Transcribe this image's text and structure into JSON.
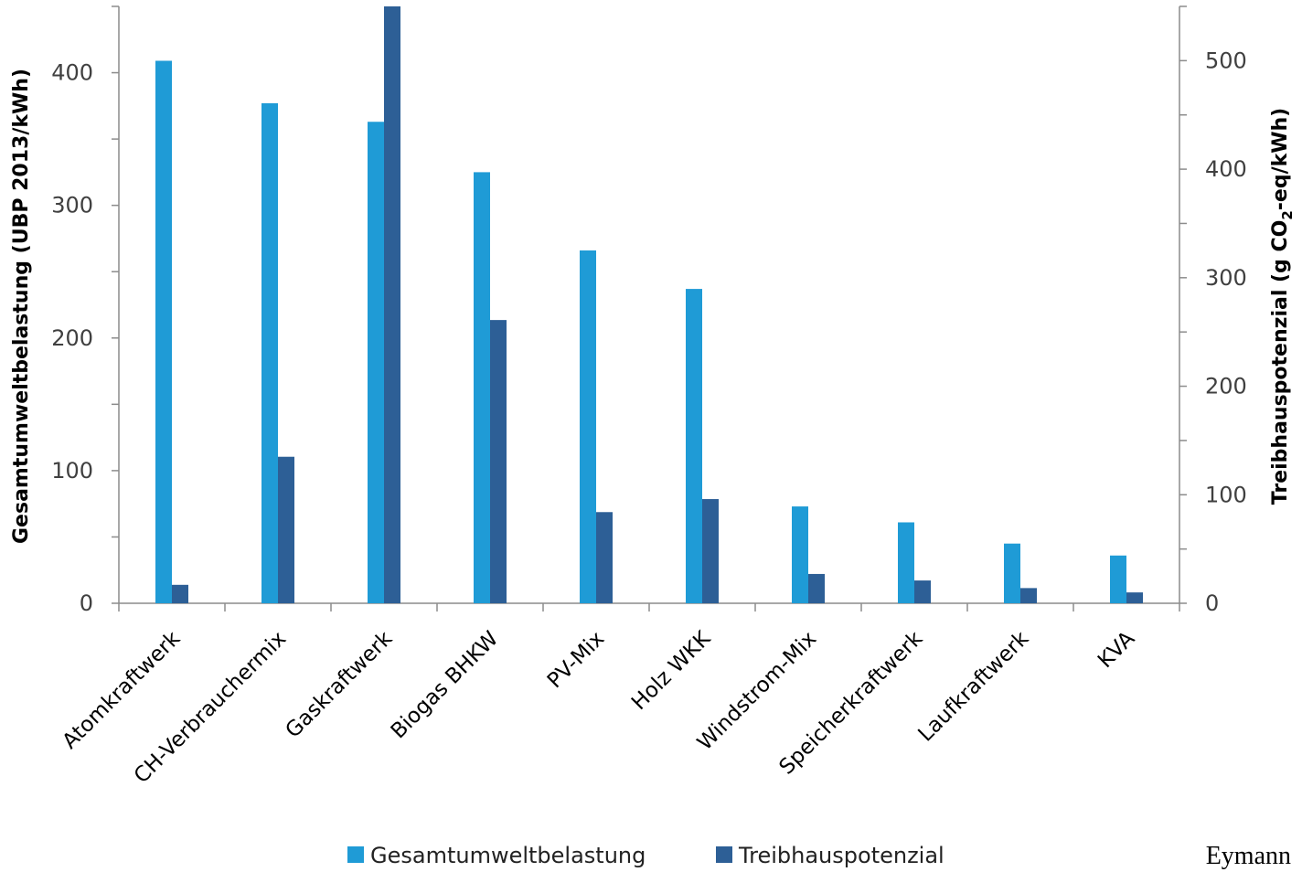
{
  "chart_data": {
    "type": "bar",
    "categories": [
      "Atomkraftwerk",
      "CH-Verbrauchermix",
      "Gaskraftwerk",
      "Biogas BHKW",
      "PV-Mix",
      "Holz WKK",
      "Windstrom-Mix",
      "Speicherkraftwerk",
      "Laufkraftwerk",
      "KVA"
    ],
    "series": [
      {
        "name": "Gesamtumweltbelastung",
        "axis": "left",
        "color": "#1f9bd6",
        "values": [
          409,
          377,
          363,
          325,
          266,
          237,
          73,
          61,
          45,
          36
        ]
      },
      {
        "name": "Treibhauspotenzial",
        "axis": "right",
        "color": "#2d5f96",
        "values": [
          17,
          135,
          550,
          261,
          84,
          96,
          27,
          21,
          14,
          10
        ]
      }
    ],
    "ylabel_left": "Gesamtumweltbelastung (UBP 2013/kWh)",
    "ylabel_right_parts": [
      "Treibhauspotenzial (g CO",
      "2",
      "-eq/kWh)"
    ],
    "ylim_left": [
      0,
      450
    ],
    "ylim_right": [
      0,
      550
    ],
    "yticks_left": [
      0,
      100,
      200,
      300,
      400
    ],
    "yticks_right": [
      0,
      100,
      200,
      300,
      400,
      500
    ],
    "legend_position": "bottom",
    "grid": false
  },
  "credit": "Eymann"
}
